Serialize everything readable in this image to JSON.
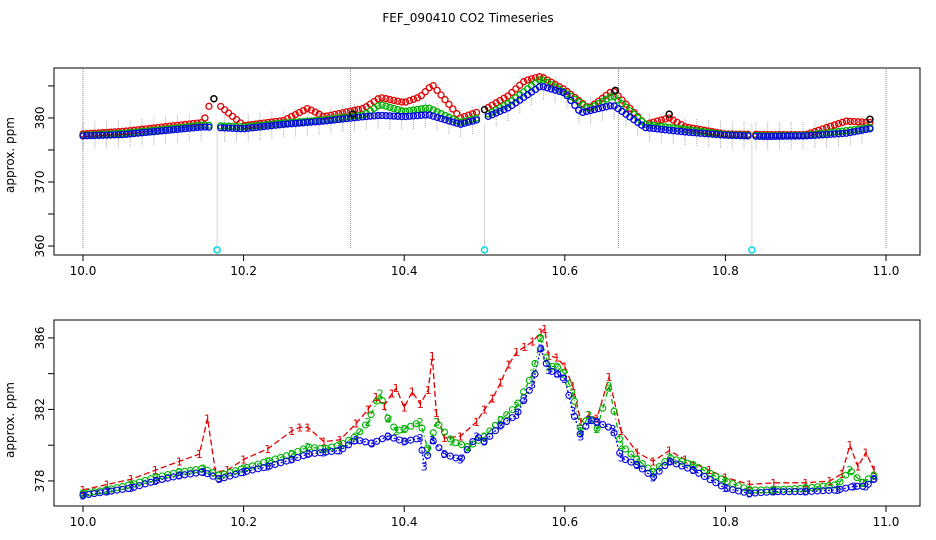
{
  "title": "FEF_090410  CO2 Timeseries",
  "colors": {
    "series1": "#e00000",
    "series2": "#00b000",
    "series3": "#0000e0",
    "hi_marker": "#000000",
    "low_marker": "#00d8e8",
    "error_bar": "#a8a8a8",
    "cal_line": "#8c8c8c"
  },
  "chart_data": [
    {
      "type": "scatter",
      "ylabel": "approx. ppm",
      "xlabel": "",
      "xlim": [
        10.0,
        11.0
      ],
      "ylim": [
        358.6,
        387.8
      ],
      "xticks": [
        "10.0",
        "10.2",
        "10.4",
        "10.6",
        "10.8",
        "11.0"
      ],
      "yticks": [
        "360",
        "370",
        "380"
      ],
      "grid": false,
      "calibration_x": [
        10.0,
        10.333,
        10.667,
        11.0
      ],
      "low_calibration_points": [
        {
          "x": 10.167,
          "y": 359.4
        },
        {
          "x": 10.5,
          "y": 359.4
        },
        {
          "x": 10.833,
          "y": 359.4
        }
      ],
      "series": [
        {
          "color": "series1",
          "x": [
            10.0,
            10.05,
            10.1,
            10.15,
            10.16,
            10.2,
            10.25,
            10.28,
            10.3,
            10.35,
            10.37,
            10.4,
            10.42,
            10.435,
            10.47,
            10.5,
            10.53,
            10.55,
            10.57,
            10.6,
            10.63,
            10.66,
            10.7,
            10.73,
            10.75,
            10.8,
            10.85,
            10.9,
            10.95,
            10.98
          ],
          "values": [
            377.5,
            377.9,
            378.6,
            379.3,
            383.0,
            378.8,
            379.6,
            381.5,
            380.2,
            381.5,
            383.2,
            382.4,
            383.3,
            385.2,
            380.0,
            381.3,
            383.5,
            385.8,
            386.5,
            384.4,
            381.5,
            384.3,
            379.0,
            380.0,
            378.6,
            377.5,
            377.4,
            377.4,
            379.5,
            379.3
          ]
        },
        {
          "color": "series2",
          "x": [
            10.0,
            10.05,
            10.1,
            10.15,
            10.2,
            10.25,
            10.3,
            10.35,
            10.37,
            10.4,
            10.43,
            10.47,
            10.5,
            10.53,
            10.57,
            10.6,
            10.63,
            10.66,
            10.7,
            10.75,
            10.8,
            10.85,
            10.9,
            10.95,
            10.98
          ],
          "values": [
            377.3,
            377.6,
            378.2,
            378.9,
            378.6,
            379.2,
            379.7,
            380.5,
            382.1,
            381.0,
            381.6,
            379.3,
            380.3,
            382.3,
            386.1,
            384.0,
            381.4,
            383.5,
            379.0,
            378.2,
            377.4,
            377.2,
            377.3,
            378.0,
            378.5
          ]
        },
        {
          "color": "series3",
          "x": [
            10.0,
            10.05,
            10.1,
            10.15,
            10.2,
            10.25,
            10.3,
            10.35,
            10.37,
            10.4,
            10.43,
            10.47,
            10.5,
            10.53,
            10.57,
            10.6,
            10.62,
            10.66,
            10.7,
            10.75,
            10.8,
            10.85,
            10.9,
            10.95,
            10.98
          ],
          "values": [
            377.2,
            377.4,
            378.0,
            378.6,
            378.3,
            379.0,
            379.5,
            380.2,
            380.4,
            380.2,
            380.5,
            379.0,
            380.0,
            381.6,
            385.0,
            383.9,
            380.8,
            382.0,
            378.5,
            377.8,
            377.3,
            377.1,
            377.2,
            377.6,
            378.3
          ]
        },
        {
          "color": "hi_marker",
          "x": [
            10.163,
            10.336,
            10.5,
            10.663,
            10.73,
            10.98
          ],
          "values": [
            383.0,
            380.6,
            381.3,
            384.3,
            380.6,
            379.8
          ]
        }
      ]
    },
    {
      "type": "line",
      "ylabel": "approx. ppm",
      "xlabel": "",
      "xlim": [
        10.0,
        11.0
      ],
      "ylim": [
        376.6,
        387.0
      ],
      "xticks": [
        "10.0",
        "10.2",
        "10.4",
        "10.6",
        "10.8",
        "11.0"
      ],
      "yticks": [
        "378",
        "382",
        "386"
      ],
      "grid": false,
      "series": [
        {
          "color": "series1",
          "marker": "1",
          "x": [
            10.0,
            10.03,
            10.06,
            10.09,
            10.12,
            10.145,
            10.155,
            10.165,
            10.18,
            10.2,
            10.23,
            10.26,
            10.27,
            10.28,
            10.3,
            10.32,
            10.34,
            10.355,
            10.365,
            10.375,
            10.385,
            10.39,
            10.4,
            10.41,
            10.42,
            10.43,
            10.435,
            10.44,
            10.45,
            10.47,
            10.49,
            10.5,
            10.51,
            10.52,
            10.53,
            10.54,
            10.55,
            10.56,
            10.57,
            10.575,
            10.58,
            10.59,
            10.6,
            10.61,
            10.62,
            10.63,
            10.64,
            10.655,
            10.67,
            10.69,
            10.71,
            10.73,
            10.75,
            10.78,
            10.8,
            10.83,
            10.86,
            10.9,
            10.93,
            10.945,
            10.955,
            10.965,
            10.975,
            10.985
          ],
          "values": [
            377.5,
            377.8,
            378.1,
            378.6,
            379.1,
            379.5,
            381.5,
            378.5,
            378.6,
            379.2,
            379.8,
            380.8,
            381.0,
            381.0,
            380.2,
            380.3,
            381.2,
            382.0,
            382.7,
            382.2,
            382.9,
            383.2,
            382.1,
            383.0,
            382.3,
            383.1,
            385.0,
            381.8,
            380.4,
            380.5,
            381.3,
            382.0,
            382.6,
            383.5,
            384.5,
            385.2,
            385.5,
            385.8,
            386.3,
            386.5,
            385.0,
            384.9,
            384.4,
            383.3,
            381.3,
            381.7,
            381.5,
            383.8,
            380.8,
            379.6,
            379.1,
            379.7,
            379.2,
            378.6,
            378.2,
            377.8,
            377.9,
            377.9,
            378.0,
            378.4,
            380.0,
            378.8,
            379.6,
            378.6
          ]
        },
        {
          "color": "series2",
          "marker": "2",
          "x": [
            10.0,
            10.03,
            10.06,
            10.09,
            10.12,
            10.15,
            10.17,
            10.2,
            10.23,
            10.26,
            10.28,
            10.3,
            10.32,
            10.34,
            10.355,
            10.37,
            10.38,
            10.39,
            10.4,
            10.42,
            10.43,
            10.44,
            10.46,
            10.48,
            10.5,
            10.52,
            10.54,
            10.56,
            10.57,
            10.58,
            10.59,
            10.6,
            10.61,
            10.62,
            10.63,
            10.64,
            10.655,
            10.67,
            10.69,
            10.71,
            10.73,
            10.76,
            10.8,
            10.83,
            10.86,
            10.9,
            10.94,
            10.955,
            10.97,
            10.985
          ],
          "values": [
            377.3,
            377.5,
            377.8,
            378.2,
            378.5,
            378.7,
            378.3,
            378.7,
            379.1,
            379.5,
            379.9,
            379.8,
            380.0,
            380.5,
            381.3,
            382.9,
            381.5,
            380.8,
            380.9,
            381.3,
            379.7,
            381.3,
            380.2,
            379.9,
            380.5,
            381.4,
            382.2,
            384.0,
            386.0,
            384.4,
            384.4,
            384.0,
            382.9,
            380.8,
            381.7,
            380.9,
            383.3,
            380.0,
            379.2,
            378.5,
            379.3,
            378.9,
            378.0,
            377.5,
            377.5,
            377.6,
            377.8,
            378.6,
            377.9,
            378.3
          ]
        },
        {
          "color": "series3",
          "marker": "3",
          "x": [
            10.0,
            10.03,
            10.06,
            10.09,
            10.12,
            10.15,
            10.17,
            10.2,
            10.23,
            10.26,
            10.28,
            10.3,
            10.32,
            10.34,
            10.36,
            10.38,
            10.4,
            10.42,
            10.425,
            10.435,
            10.45,
            10.47,
            10.49,
            10.5,
            10.52,
            10.54,
            10.55,
            10.56,
            10.57,
            10.58,
            10.59,
            10.6,
            10.61,
            10.62,
            10.63,
            10.64,
            10.66,
            10.67,
            10.69,
            10.71,
            10.73,
            10.76,
            10.8,
            10.83,
            10.86,
            10.9,
            10.94,
            10.96,
            10.975,
            10.985
          ],
          "values": [
            377.2,
            377.4,
            377.6,
            378.0,
            378.3,
            378.5,
            378.1,
            378.5,
            378.8,
            379.2,
            379.5,
            379.6,
            379.7,
            380.3,
            380.1,
            380.5,
            380.2,
            380.4,
            378.8,
            380.3,
            379.5,
            379.2,
            380.5,
            380.2,
            381.1,
            381.7,
            382.6,
            383.4,
            385.4,
            384.2,
            384.0,
            383.7,
            381.9,
            380.5,
            381.4,
            381.3,
            380.9,
            379.3,
            378.9,
            378.2,
            379.1,
            378.6,
            377.6,
            377.3,
            377.4,
            377.4,
            377.5,
            377.7,
            377.7,
            378.1
          ]
        }
      ]
    }
  ]
}
